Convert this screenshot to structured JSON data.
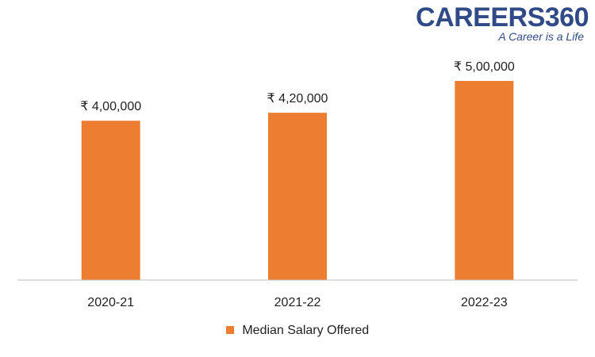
{
  "logo": {
    "brand": "CAREERS360",
    "tagline": "A Career is a Life"
  },
  "chart_data": {
    "type": "bar",
    "categories": [
      "2020-21",
      "2021-22",
      "2022-23"
    ],
    "series": [
      {
        "name": "Median Salary Offered",
        "values": [
          400000,
          420000,
          500000
        ]
      }
    ],
    "data_labels": [
      "₹ 4,00,000",
      "₹ 4,20,000",
      "₹ 5,00,000"
    ],
    "ylim": [
      0,
      500000
    ],
    "grid": false,
    "legend": "bottom",
    "colors": {
      "bar": "#ed7d31",
      "axis": "#bfbfbf"
    }
  }
}
